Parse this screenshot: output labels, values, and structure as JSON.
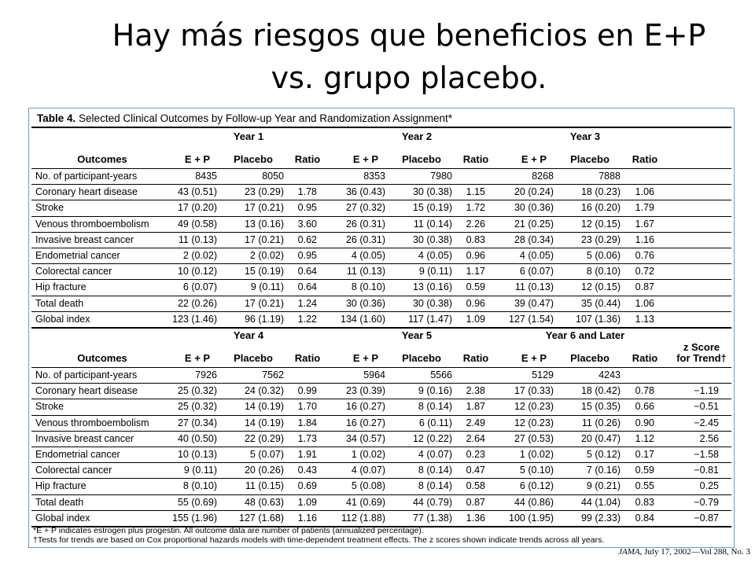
{
  "slide": {
    "title_line1": "Hay más riesgos que beneficios en E+P",
    "title_line2": "vs. grupo placebo."
  },
  "table": {
    "label": "Table 4.",
    "caption": "Selected Clinical Outcomes by Follow-up Year and Randomization Assignment*",
    "outcomes_header": "Outcomes",
    "col_headers": [
      "E + P",
      "Placebo",
      "Ratio"
    ],
    "zscore_header_line1": "z Score",
    "zscore_header_line2": "for Trend†",
    "sections": [
      {
        "years": [
          "Year 1",
          "Year 2",
          "Year 3"
        ],
        "rows": [
          {
            "label": "No. of participant-years",
            "cells": [
              "8435",
              "8050",
              "",
              "8353",
              "7980",
              "",
              "8268",
              "7888",
              ""
            ]
          },
          {
            "label": "Coronary heart disease",
            "cells": [
              "43 (0.51)",
              "23 (0.29)",
              "1.78",
              "36 (0.43)",
              "30 (0.38)",
              "1.15",
              "20 (0.24)",
              "18 (0.23)",
              "1.06"
            ]
          },
          {
            "label": "Stroke",
            "cells": [
              "17 (0.20)",
              "17 (0.21)",
              "0.95",
              "27 (0.32)",
              "15 (0.19)",
              "1.72",
              "30 (0.36)",
              "16 (0.20)",
              "1.79"
            ]
          },
          {
            "label": "Venous thromboembolism",
            "cells": [
              "49 (0.58)",
              "13 (0.16)",
              "3.60",
              "26 (0.31)",
              "11 (0.14)",
              "2.26",
              "21 (0.25)",
              "12 (0.15)",
              "1.67"
            ]
          },
          {
            "label": "Invasive breast cancer",
            "cells": [
              "11 (0.13)",
              "17 (0.21)",
              "0.62",
              "26 (0.31)",
              "30 (0.38)",
              "0.83",
              "28 (0.34)",
              "23 (0.29)",
              "1.16"
            ]
          },
          {
            "label": "Endometrial cancer",
            "cells": [
              "2 (0.02)",
              "2 (0.02)",
              "0.95",
              "4 (0.05)",
              "4 (0.05)",
              "0.96",
              "4 (0.05)",
              "5 (0.06)",
              "0.76"
            ]
          },
          {
            "label": "Colorectal cancer",
            "cells": [
              "10 (0.12)",
              "15 (0.19)",
              "0.64",
              "11 (0.13)",
              "9 (0.11)",
              "1.17",
              "6 (0.07)",
              "8 (0.10)",
              "0.72"
            ]
          },
          {
            "label": "Hip fracture",
            "cells": [
              "6 (0.07)",
              "9 (0.11)",
              "0.64",
              "8 (0.10)",
              "13 (0.16)",
              "0.59",
              "11 (0.13)",
              "12 (0.15)",
              "0.87"
            ]
          },
          {
            "label": "Total death",
            "cells": [
              "22 (0.26)",
              "17 (0.21)",
              "1.24",
              "30 (0.36)",
              "30 (0.38)",
              "0.96",
              "39 (0.47)",
              "35 (0.44)",
              "1.06"
            ]
          },
          {
            "label": "Global index",
            "cells": [
              "123 (1.46)",
              "96 (1.19)",
              "1.22",
              "134 (1.60)",
              "117 (1.47)",
              "1.09",
              "127 (1.54)",
              "107 (1.36)",
              "1.13"
            ]
          }
        ]
      },
      {
        "years": [
          "Year 4",
          "Year 5",
          "Year 6 and Later"
        ],
        "rows": [
          {
            "label": "No. of participant-years",
            "cells": [
              "7926",
              "7562",
              "",
              "5964",
              "5566",
              "",
              "5129",
              "4243",
              ""
            ],
            "z": ""
          },
          {
            "label": "Coronary heart disease",
            "cells": [
              "25 (0.32)",
              "24 (0.32)",
              "0.99",
              "23 (0.39)",
              "9 (0.16)",
              "2.38",
              "17 (0.33)",
              "18 (0.42)",
              "0.78"
            ],
            "z": "−1.19"
          },
          {
            "label": "Stroke",
            "cells": [
              "25 (0.32)",
              "14 (0.19)",
              "1.70",
              "16 (0.27)",
              "8 (0.14)",
              "1.87",
              "12 (0.23)",
              "15 (0.35)",
              "0.66"
            ],
            "z": "−0.51"
          },
          {
            "label": "Venous thromboembolism",
            "cells": [
              "27 (0.34)",
              "14 (0.19)",
              "1.84",
              "16 (0.27)",
              "6 (0.11)",
              "2.49",
              "12 (0.23)",
              "11 (0.26)",
              "0.90"
            ],
            "z": "−2.45"
          },
          {
            "label": "Invasive breast cancer",
            "cells": [
              "40 (0.50)",
              "22 (0.29)",
              "1.73",
              "34 (0.57)",
              "12 (0.22)",
              "2.64",
              "27 (0.53)",
              "20 (0.47)",
              "1.12"
            ],
            "z": "2.56"
          },
          {
            "label": "Endometrial cancer",
            "cells": [
              "10 (0.13)",
              "5 (0.07)",
              "1.91",
              "1 (0.02)",
              "4 (0.07)",
              "0.23",
              "1 (0.02)",
              "5 (0.12)",
              "0.17"
            ],
            "z": "−1.58"
          },
          {
            "label": "Colorectal cancer",
            "cells": [
              "9 (0.11)",
              "20 (0.26)",
              "0.43",
              "4 (0.07)",
              "8 (0.14)",
              "0.47",
              "5 (0.10)",
              "7 (0.16)",
              "0.59"
            ],
            "z": "−0.81"
          },
          {
            "label": "Hip fracture",
            "cells": [
              "8 (0.10)",
              "11 (0.15)",
              "0.69",
              "5 (0.08)",
              "8 (0.14)",
              "0.58",
              "6 (0.12)",
              "9 (0.21)",
              "0.55"
            ],
            "z": "0.25"
          },
          {
            "label": "Total death",
            "cells": [
              "55 (0.69)",
              "48 (0.63)",
              "1.09",
              "41 (0.69)",
              "44 (0.79)",
              "0.87",
              "44 (0.86)",
              "44 (1.04)",
              "0.83"
            ],
            "z": "−0.79"
          },
          {
            "label": "Global index",
            "cells": [
              "155 (1.96)",
              "127 (1.68)",
              "1.16",
              "112 (1.88)",
              "77 (1.38)",
              "1.36",
              "100 (1.95)",
              "99 (2.33)",
              "0.84"
            ],
            "z": "−0.87"
          }
        ]
      }
    ],
    "footnote1": "*E + P indicates estrogen plus progestin. All outcome data are number of patients (annualized percentage).",
    "footnote2": "†Tests for trends are based on Cox proportional hazards models with time-dependent treatment effects. The z scores shown indicate trends across all years."
  },
  "citation": {
    "journal": "JAMA",
    "rest": ", July 17, 2002—Vol 288, No. 3"
  }
}
